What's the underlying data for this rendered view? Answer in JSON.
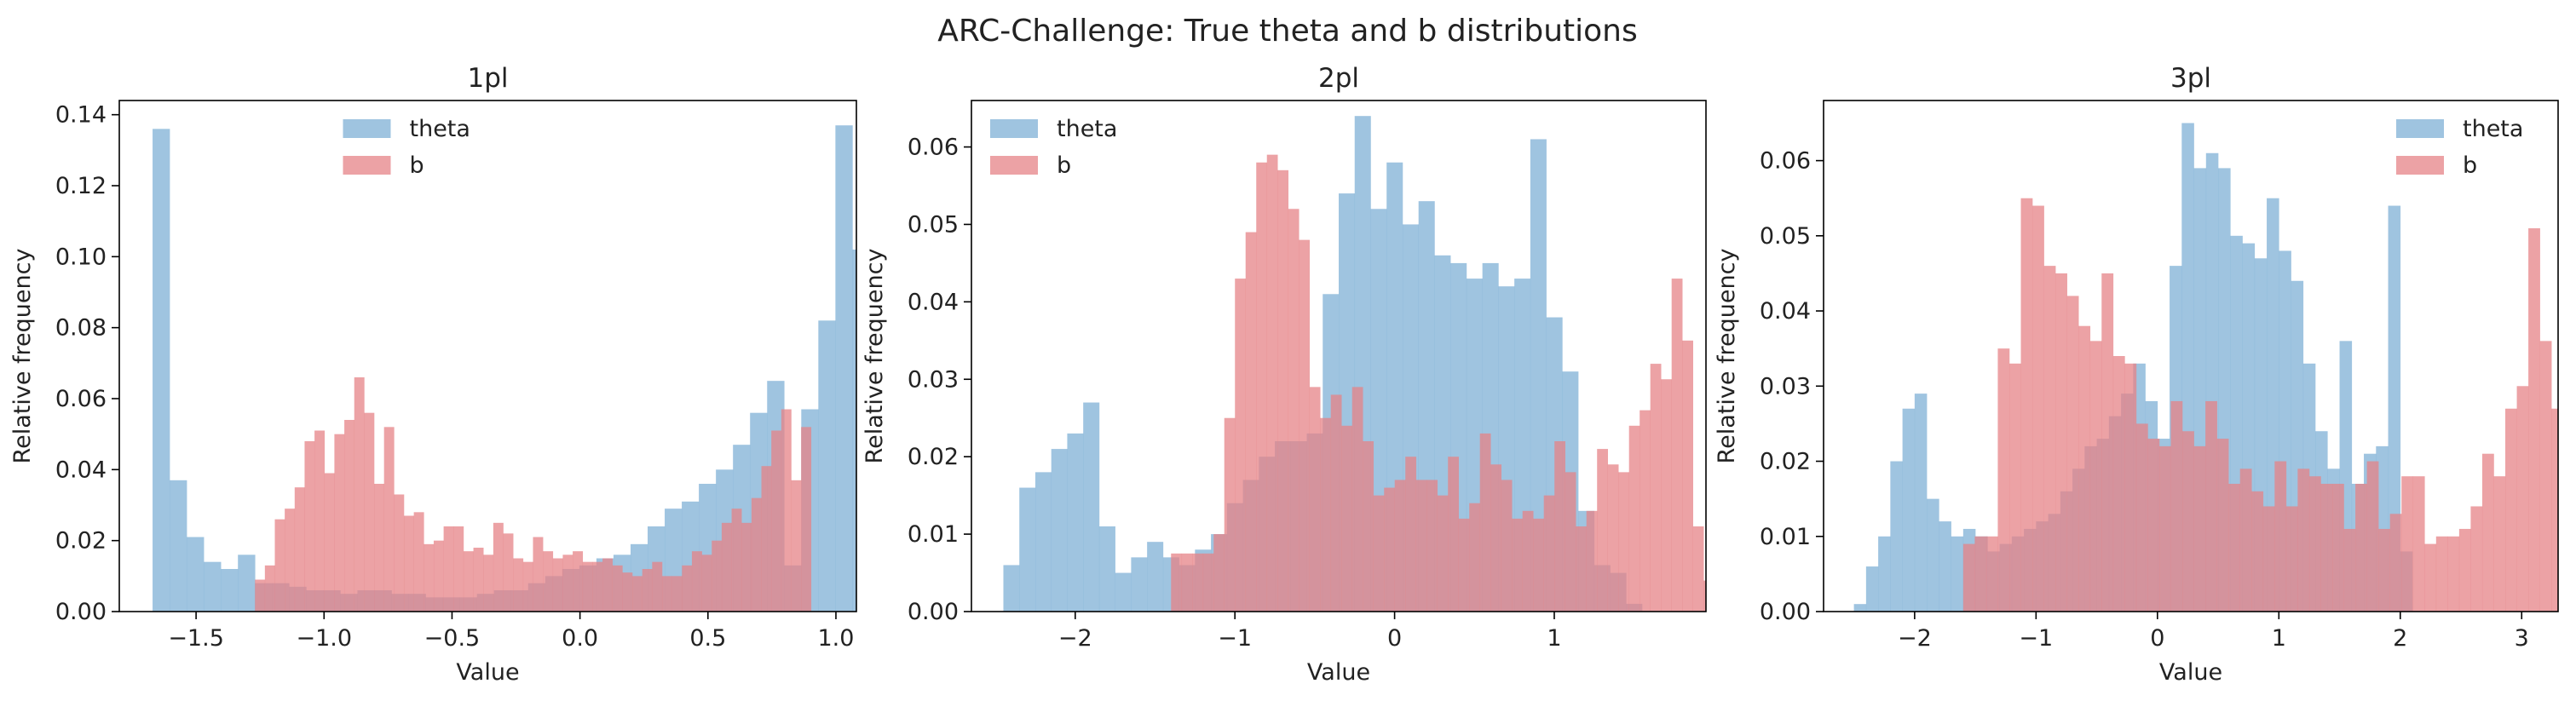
{
  "figure_title": "ARC-Challenge: True theta and b distributions",
  "colors": {
    "theta": "#7fb0d6",
    "b": "#e68387",
    "theta_opacity": 0.75,
    "b_opacity": 0.75
  },
  "chart_data": [
    {
      "type": "histogram",
      "title": "1pl",
      "xlabel": "Value",
      "ylabel": "Relative frequency",
      "xlim": [
        -1.8,
        1.08
      ],
      "ylim": [
        0,
        0.144
      ],
      "xticks": [
        -1.5,
        -1.0,
        -0.5,
        0.0,
        0.5,
        1.0
      ],
      "xtick_labels": [
        "−1.5",
        "−1.0",
        "−0.5",
        "0.0",
        "0.5",
        "1.0"
      ],
      "yticks": [
        0,
        0.02,
        0.04,
        0.06,
        0.08,
        0.1,
        0.12,
        0.14
      ],
      "ytick_labels": [
        "0.00",
        "0.02",
        "0.04",
        "0.06",
        "0.08",
        "0.10",
        "0.12",
        "0.14"
      ],
      "legend_position": "top-center",
      "series": [
        {
          "name": "theta",
          "bin_start": -1.67,
          "bin_width": 0.0667,
          "values": [
            0.136,
            0.037,
            0.021,
            0.014,
            0.012,
            0.016,
            0.008,
            0.008,
            0.007,
            0.006,
            0.006,
            0.005,
            0.006,
            0.006,
            0.005,
            0.005,
            0.004,
            0.004,
            0.004,
            0.005,
            0.006,
            0.006,
            0.008,
            0.01,
            0.012,
            0.013,
            0.015,
            0.016,
            0.019,
            0.024,
            0.029,
            0.031,
            0.036,
            0.04,
            0.047,
            0.056,
            0.065,
            0.013,
            0.057,
            0.082,
            0.137,
            0.102
          ]
        },
        {
          "name": "b",
          "bin_start": -1.27,
          "bin_width": 0.0388,
          "values": [
            0.009,
            0.013,
            0.026,
            0.029,
            0.035,
            0.048,
            0.051,
            0.039,
            0.05,
            0.054,
            0.066,
            0.056,
            0.036,
            0.052,
            0.033,
            0.027,
            0.028,
            0.019,
            0.02,
            0.024,
            0.024,
            0.017,
            0.018,
            0.016,
            0.025,
            0.022,
            0.015,
            0.014,
            0.021,
            0.017,
            0.015,
            0.016,
            0.017,
            0.014,
            0.014,
            0.015,
            0.013,
            0.011,
            0.01,
            0.012,
            0.014,
            0.01,
            0.01,
            0.013,
            0.017,
            0.016,
            0.02,
            0.025,
            0.029,
            0.025,
            0.032,
            0.041,
            0.051,
            0.057,
            0.037,
            0.052
          ]
        }
      ]
    },
    {
      "type": "histogram",
      "title": "2pl",
      "xlabel": "Value",
      "ylabel": "Relative frequency",
      "xlim": [
        -2.65,
        1.95
      ],
      "ylim": [
        0,
        0.066
      ],
      "xticks": [
        -2,
        -1,
        0,
        1
      ],
      "xtick_labels": [
        "−2",
        "−1",
        "0",
        "1"
      ],
      "yticks": [
        0,
        0.01,
        0.02,
        0.03,
        0.04,
        0.05,
        0.06
      ],
      "ytick_labels": [
        "0.00",
        "0.01",
        "0.02",
        "0.03",
        "0.04",
        "0.05",
        "0.06"
      ],
      "legend_position": "top-left",
      "series": [
        {
          "name": "theta",
          "bin_start": -2.45,
          "bin_width": 0.1,
          "values": [
            0.006,
            0.016,
            0.018,
            0.021,
            0.023,
            0.027,
            0.011,
            0.005,
            0.007,
            0.009,
            0.007,
            0.006,
            0.008,
            0.01,
            0.014,
            0.017,
            0.02,
            0.022,
            0.022,
            0.023,
            0.041,
            0.054,
            0.064,
            0.052,
            0.058,
            0.05,
            0.053,
            0.046,
            0.045,
            0.043,
            0.045,
            0.042,
            0.043,
            0.061,
            0.038,
            0.031,
            0.013,
            0.006,
            0.005,
            0.001
          ]
        },
        {
          "name": "b",
          "bin_start": -1.4,
          "bin_width": 0.0667,
          "values": [
            0.0075,
            0.0075,
            0.0075,
            0.0075,
            0.01,
            0.025,
            0.043,
            0.049,
            0.058,
            0.059,
            0.057,
            0.052,
            0.048,
            0.029,
            0.025,
            0.028,
            0.024,
            0.029,
            0.022,
            0.015,
            0.016,
            0.017,
            0.02,
            0.017,
            0.017,
            0.015,
            0.02,
            0.012,
            0.014,
            0.023,
            0.019,
            0.017,
            0.012,
            0.013,
            0.012,
            0.015,
            0.022,
            0.018,
            0.011,
            0.013,
            0.021,
            0.019,
            0.018,
            0.024,
            0.026,
            0.032,
            0.03,
            0.043,
            0.035,
            0.011,
            0.004,
            0.001
          ]
        }
      ]
    },
    {
      "type": "histogram",
      "title": "3pl",
      "xlabel": "Value",
      "ylabel": "Relative frequency",
      "xlim": [
        -2.75,
        3.3
      ],
      "ylim": [
        0,
        0.068
      ],
      "xticks": [
        -2,
        -1,
        0,
        1,
        2,
        3
      ],
      "xtick_labels": [
        "−2",
        "−1",
        "0",
        "1",
        "2",
        "3"
      ],
      "yticks": [
        0,
        0.01,
        0.02,
        0.03,
        0.04,
        0.05,
        0.06
      ],
      "ytick_labels": [
        "0.00",
        "0.01",
        "0.02",
        "0.03",
        "0.04",
        "0.05",
        "0.06"
      ],
      "legend_position": "top-right",
      "series": [
        {
          "name": "theta",
          "bin_start": -2.5,
          "bin_width": 0.1,
          "values": [
            0.001,
            0.006,
            0.01,
            0.02,
            0.027,
            0.029,
            0.015,
            0.012,
            0.01,
            0.011,
            0.01,
            0.008,
            0.009,
            0.01,
            0.011,
            0.012,
            0.013,
            0.016,
            0.019,
            0.022,
            0.023,
            0.026,
            0.029,
            0.033,
            0.028,
            0.023,
            0.046,
            0.065,
            0.059,
            0.061,
            0.059,
            0.05,
            0.049,
            0.047,
            0.055,
            0.048,
            0.044,
            0.033,
            0.024,
            0.019,
            0.036,
            0.017,
            0.021,
            0.022,
            0.054,
            0.008
          ]
        },
        {
          "name": "b",
          "bin_start": -1.6,
          "bin_width": 0.095,
          "values": [
            0.009,
            0.01,
            0.01,
            0.035,
            0.033,
            0.055,
            0.054,
            0.046,
            0.045,
            0.042,
            0.038,
            0.036,
            0.045,
            0.034,
            0.033,
            0.025,
            0.023,
            0.022,
            0.028,
            0.024,
            0.022,
            0.028,
            0.023,
            0.017,
            0.019,
            0.016,
            0.014,
            0.02,
            0.014,
            0.019,
            0.018,
            0.017,
            0.017,
            0.011,
            0.017,
            0.02,
            0.011,
            0.013,
            0.018,
            0.018,
            0.009,
            0.01,
            0.01,
            0.011,
            0.014,
            0.021,
            0.018,
            0.027,
            0.03,
            0.051,
            0.036,
            0.027,
            0.016,
            0.01,
            0.002
          ]
        }
      ]
    }
  ]
}
